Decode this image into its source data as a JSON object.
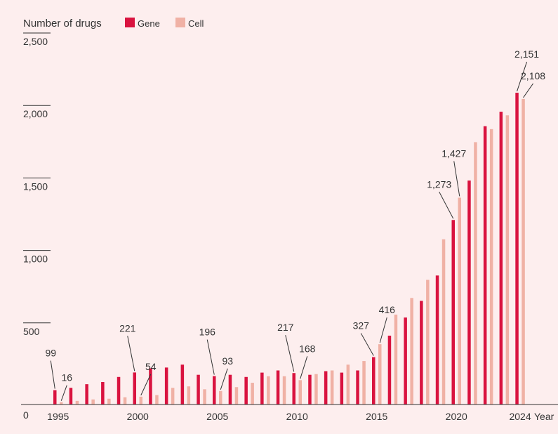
{
  "colors": {
    "background": "#fdeeee",
    "gene": "#d9133f",
    "cell": "#f0b1a5",
    "axis": "#333333"
  },
  "chart_data": {
    "type": "bar",
    "ylabel": "Number of drugs",
    "xlabel": "Year",
    "ylim": [
      0,
      2500
    ],
    "yticks": [
      {
        "value": 0,
        "label": "0"
      },
      {
        "value": 500,
        "label": "500"
      },
      {
        "value": 1000,
        "label": "1,000"
      },
      {
        "value": 1500,
        "label": "1,500"
      },
      {
        "value": 2000,
        "label": "2,000"
      },
      {
        "value": 2500,
        "label": "2,500"
      }
    ],
    "xticks": [
      {
        "value": 1995,
        "label": "1995"
      },
      {
        "value": 2000,
        "label": "2000"
      },
      {
        "value": 2005,
        "label": "2005"
      },
      {
        "value": 2010,
        "label": "2010"
      },
      {
        "value": 2015,
        "label": "2015"
      },
      {
        "value": 2020,
        "label": "2020"
      },
      {
        "value": 2024,
        "label": "2024"
      }
    ],
    "legend": {
      "position": "top"
    },
    "categories": [
      1995,
      1996,
      1997,
      1998,
      1999,
      2000,
      2001,
      2002,
      2003,
      2004,
      2005,
      2006,
      2007,
      2008,
      2009,
      2010,
      2011,
      2012,
      2013,
      2014,
      2015,
      2016,
      2017,
      2018,
      2019,
      2020,
      2021,
      2022,
      2023,
      2024
    ],
    "series": [
      {
        "name": "Gene",
        "color": "#d9133f",
        "values": [
          99,
          115,
          140,
          155,
          190,
          221,
          250,
          255,
          275,
          205,
          196,
          205,
          190,
          220,
          235,
          217,
          205,
          230,
          220,
          235,
          327,
          475,
          600,
          715,
          890,
          1273,
          1545,
          1920,
          2020,
          2151
        ]
      },
      {
        "name": "Cell",
        "color": "#f0b1a5",
        "values": [
          16,
          25,
          35,
          40,
          50,
          54,
          65,
          115,
          125,
          105,
          93,
          120,
          150,
          195,
          195,
          168,
          210,
          235,
          275,
          300,
          416,
          620,
          735,
          860,
          1140,
          1427,
          1810,
          1900,
          1995,
          2108
        ]
      }
    ],
    "annotations": [
      {
        "series": "Gene",
        "year": 1995,
        "label": "99"
      },
      {
        "series": "Cell",
        "year": 1995,
        "label": "16"
      },
      {
        "series": "Gene",
        "year": 2000,
        "label": "221"
      },
      {
        "series": "Cell",
        "year": 2000,
        "label": "54"
      },
      {
        "series": "Gene",
        "year": 2005,
        "label": "196"
      },
      {
        "series": "Cell",
        "year": 2005,
        "label": "93"
      },
      {
        "series": "Gene",
        "year": 2010,
        "label": "217"
      },
      {
        "series": "Cell",
        "year": 2010,
        "label": "168"
      },
      {
        "series": "Gene",
        "year": 2015,
        "label": "327"
      },
      {
        "series": "Cell",
        "year": 2015,
        "label": "416"
      },
      {
        "series": "Gene",
        "year": 2020,
        "label": "1,273"
      },
      {
        "series": "Cell",
        "year": 2020,
        "label": "1,427"
      },
      {
        "series": "Gene",
        "year": 2024,
        "label": "2,151"
      },
      {
        "series": "Cell",
        "year": 2024,
        "label": "2,108"
      }
    ]
  }
}
